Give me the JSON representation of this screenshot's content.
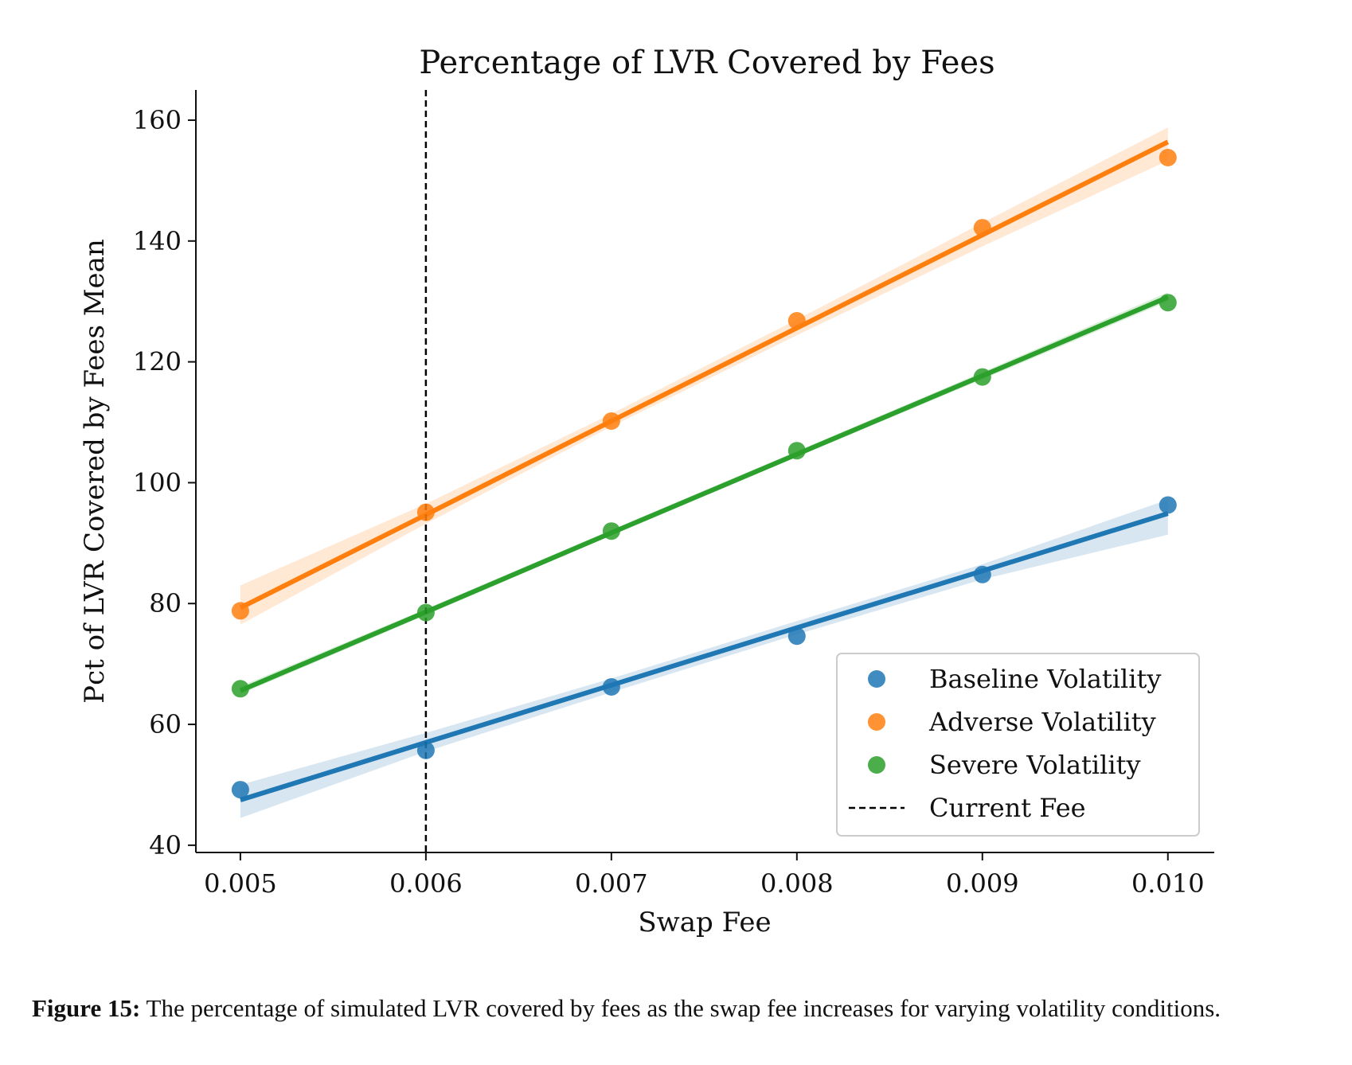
{
  "chart_data": {
    "type": "scatter",
    "title": "Percentage of LVR Covered by Fees",
    "xlabel": "Swap Fee",
    "ylabel": "Pct of LVR Covered by Fees Mean",
    "x": [
      0.005,
      0.006,
      0.007,
      0.008,
      0.009,
      0.01
    ],
    "x_tick_labels": [
      "0.005",
      "0.006",
      "0.007",
      "0.008",
      "0.009",
      "0.010"
    ],
    "y_ticks": [
      40,
      60,
      80,
      100,
      120,
      140,
      160
    ],
    "xlim": [
      0.00476,
      0.01025
    ],
    "ylim": [
      38.8,
      165
    ],
    "grid": false,
    "legend_position": "lower-right",
    "series": [
      {
        "name": "Baseline Volatility",
        "color": "#1f77b4",
        "values": [
          49.2,
          55.7,
          66.2,
          74.6,
          84.8,
          96.3
        ],
        "fit": [
          47.5,
          57.0,
          66.5,
          76.0,
          85.4,
          94.9
        ],
        "band_lower": [
          44.5,
          55.5,
          65.3,
          74.9,
          84.0,
          91.4
        ],
        "band_upper": [
          50.0,
          58.6,
          67.6,
          77.1,
          86.5,
          97.2
        ]
      },
      {
        "name": "Adverse Volatility",
        "color": "#ff7f0e",
        "values": [
          78.8,
          95.1,
          110.2,
          126.8,
          142.2,
          153.8
        ],
        "fit": [
          79.3,
          94.7,
          110.2,
          125.6,
          141.0,
          156.4
        ],
        "band_lower": [
          76.5,
          93.2,
          109.3,
          124.4,
          139.1,
          153.3
        ],
        "band_upper": [
          83.0,
          96.5,
          111.4,
          127.0,
          143.0,
          158.8
        ]
      },
      {
        "name": "Severe Volatility",
        "color": "#2ca02c",
        "values": [
          65.9,
          78.5,
          92.0,
          105.3,
          117.5,
          129.8
        ],
        "fit": [
          65.6,
          78.6,
          91.7,
          104.7,
          117.7,
          130.7
        ],
        "band_lower": [
          65.0,
          78.1,
          91.3,
          104.3,
          117.1,
          130.0
        ],
        "band_upper": [
          66.3,
          79.1,
          92.2,
          105.2,
          118.3,
          131.5
        ]
      }
    ],
    "reference_line": {
      "name": "Current Fee",
      "x": 0.006,
      "color": "#000000",
      "style": "dashed"
    }
  },
  "caption": {
    "label": "Figure 15:",
    "text": " The percentage of simulated LVR covered by fees as the swap fee increases for varying volatility conditions."
  }
}
